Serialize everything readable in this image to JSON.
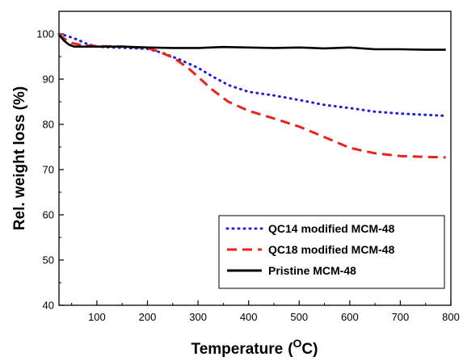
{
  "chart_data": {
    "type": "line",
    "title": "",
    "xlabel": "Temperature",
    "xlabel_unit_sup": "O",
    "xlabel_unit_tail": "C)",
    "xlabel_open": "(",
    "ylabel": "Rel. weight loss (%)",
    "xlim": [
      25,
      800
    ],
    "ylim": [
      40,
      105
    ],
    "xticks": [
      100,
      200,
      300,
      400,
      500,
      600,
      700,
      800
    ],
    "yticks": [
      40,
      50,
      60,
      70,
      80,
      90,
      100
    ],
    "legend_position": "bottom-right",
    "series": [
      {
        "name": "QC14 modified MCM-48",
        "style": "dotted",
        "color": "#1f1fd6",
        "x": [
          25,
          40,
          60,
          80,
          100,
          130,
          160,
          200,
          230,
          260,
          300,
          330,
          360,
          400,
          450,
          500,
          550,
          600,
          650,
          700,
          750,
          790
        ],
        "y": [
          100,
          99.6,
          98.8,
          97.8,
          97.2,
          97.0,
          96.9,
          96.7,
          95.8,
          94.5,
          92.5,
          90.5,
          88.7,
          87.2,
          86.4,
          85.4,
          84.3,
          83.6,
          82.8,
          82.4,
          82.1,
          81.9
        ]
      },
      {
        "name": "QC18 modified MCM-48",
        "style": "dashed",
        "color": "#e8231f",
        "x": [
          25,
          35,
          50,
          70,
          100,
          150,
          200,
          220,
          250,
          280,
          300,
          330,
          360,
          400,
          450,
          500,
          550,
          600,
          650,
          700,
          750,
          790
        ],
        "y": [
          100,
          99.0,
          98.0,
          97.5,
          97.3,
          97.2,
          96.9,
          96.2,
          94.8,
          92.5,
          90.5,
          87.5,
          85.0,
          83.0,
          81.3,
          79.5,
          77.2,
          74.8,
          73.6,
          73.0,
          72.8,
          72.7
        ]
      },
      {
        "name": "Pristine MCM-48",
        "style": "solid",
        "color": "#000000",
        "x": [
          25,
          35,
          45,
          55,
          70,
          100,
          150,
          200,
          250,
          300,
          350,
          400,
          450,
          500,
          550,
          600,
          650,
          700,
          750,
          790
        ],
        "y": [
          99.8,
          98.5,
          97.6,
          97.2,
          97.2,
          97.2,
          97.2,
          97.0,
          96.9,
          96.9,
          97.1,
          97.0,
          96.9,
          97.0,
          96.8,
          97.0,
          96.6,
          96.6,
          96.5,
          96.5
        ]
      }
    ]
  }
}
